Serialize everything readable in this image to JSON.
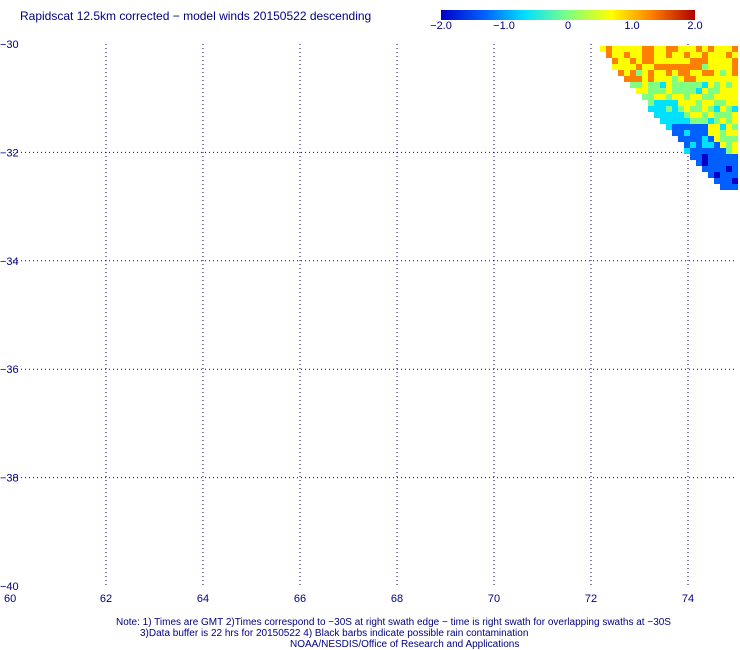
{
  "title": "Rapidscat 12.5km corrected − model winds 20150522 descending",
  "colorbar": {
    "ticks": [
      "−2.0",
      "−1.0",
      "0",
      "1.0",
      "2.0"
    ],
    "tick_values": [
      -2.0,
      -1.0,
      0,
      1.0,
      2.0
    ],
    "range": [
      -2.0,
      2.0
    ],
    "colormap": [
      "#0000c8",
      "#0060ff",
      "#00e0ff",
      "#80ff80",
      "#ffff00",
      "#ff8000",
      "#b00000"
    ]
  },
  "map": {
    "lat_range": [
      -40,
      -30
    ],
    "lon_range": [
      60,
      75
    ],
    "lat_labels": [
      "−30",
      "−32",
      "−34",
      "−36",
      "−38",
      "−40"
    ],
    "lon_labels": [
      "60",
      "62",
      "64",
      "66",
      "68",
      "70",
      "72",
      "74"
    ],
    "grid": true,
    "grid_color": "#000080"
  },
  "notes": {
    "line1": "Note: 1) Times are GMT 2)Times correspond to −30S at right swath edge − time is right swath for overlapping swaths at −30S",
    "line2": "3)Data buffer is 22 hrs for 20150522 4) Black barbs indicate possible rain contamination",
    "line3": "NOAA/NESDIS/Office of Research and Applications"
  }
}
